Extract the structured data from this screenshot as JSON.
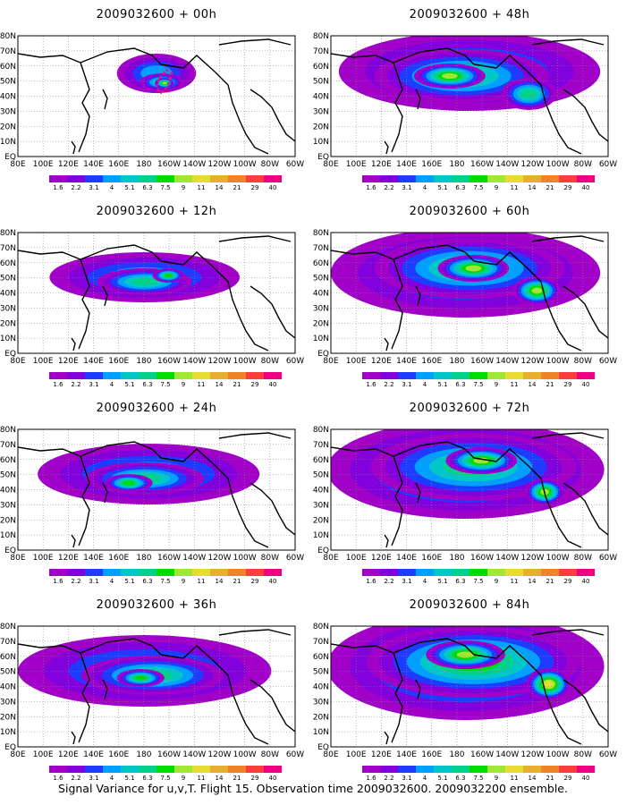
{
  "panels": [
    {
      "title": "2009032600 + 00h",
      "forecast_hour": 0,
      "blobs": [
        [
          175,
          82,
          50,
          22,
          0.25
        ],
        [
          182,
          92,
          28,
          10,
          0.45
        ],
        [
          185,
          93,
          12,
          6,
          0.55
        ]
      ],
      "contour": true
    },
    {
      "title": "2009032600 + 12h",
      "forecast_hour": 12,
      "blobs": [
        [
          160,
          90,
          120,
          28,
          0.22
        ],
        [
          160,
          95,
          60,
          15,
          0.38
        ],
        [
          190,
          88,
          20,
          8,
          0.5
        ]
      ],
      "contour": false
    },
    {
      "title": "2009032600 + 24h",
      "forecast_hour": 24,
      "blobs": [
        [
          165,
          90,
          140,
          34,
          0.22
        ],
        [
          160,
          95,
          75,
          18,
          0.38
        ],
        [
          140,
          100,
          30,
          10,
          0.48
        ]
      ],
      "contour": false
    },
    {
      "title": "2009032600 + 36h",
      "forecast_hour": 36,
      "blobs": [
        [
          160,
          90,
          160,
          40,
          0.22
        ],
        [
          170,
          95,
          90,
          22,
          0.38
        ],
        [
          155,
          98,
          30,
          10,
          0.52
        ]
      ],
      "contour": false
    },
    {
      "title": "2009032600 + 48h",
      "forecast_hour": 48,
      "blobs": [
        [
          175,
          80,
          165,
          44,
          0.26
        ],
        [
          165,
          85,
          110,
          30,
          0.38
        ],
        [
          150,
          85,
          45,
          14,
          0.55
        ],
        [
          250,
          105,
          35,
          18,
          0.45
        ]
      ],
      "contour": false
    },
    {
      "title": "2009032600 + 60h",
      "forecast_hour": 60,
      "blobs": [
        [
          170,
          85,
          170,
          50,
          0.28
        ],
        [
          175,
          80,
          120,
          34,
          0.42
        ],
        [
          180,
          80,
          45,
          15,
          0.6
        ],
        [
          260,
          105,
          30,
          16,
          0.55
        ]
      ],
      "contour": false
    },
    {
      "title": "2009032600 + 72h",
      "forecast_hour": 72,
      "blobs": [
        [
          170,
          85,
          175,
          55,
          0.3
        ],
        [
          180,
          82,
          130,
          38,
          0.44
        ],
        [
          190,
          75,
          45,
          15,
          0.62
        ],
        [
          270,
          110,
          25,
          15,
          0.6
        ]
      ],
      "contour": false
    },
    {
      "title": "2009032600 + 84h",
      "forecast_hour": 84,
      "blobs": [
        [
          170,
          85,
          175,
          60,
          0.32
        ],
        [
          180,
          80,
          135,
          40,
          0.46
        ],
        [
          170,
          72,
          50,
          16,
          0.62
        ],
        [
          275,
          105,
          28,
          18,
          0.66
        ]
      ],
      "contour": false
    }
  ],
  "lat_labels": [
    "80N",
    "70N",
    "60N",
    "50N",
    "40N",
    "30N",
    "20N",
    "10N",
    "EQ"
  ],
  "lon_labels": [
    "80E",
    "100E",
    "120E",
    "140E",
    "160E",
    "180",
    "160W",
    "140W",
    "120W",
    "100W",
    "80W",
    "60W"
  ],
  "colorbar": {
    "colors": [
      "#a000c8",
      "#8200dc",
      "#1e3cff",
      "#00a0ff",
      "#00c8c8",
      "#00d28c",
      "#00dc00",
      "#a0e632",
      "#e6dc32",
      "#e6af2d",
      "#f08228",
      "#fa3c3c",
      "#f00082"
    ],
    "labels": [
      "1.6",
      "2.2",
      "3.1",
      "4",
      "5.1",
      "6.3",
      "7.5",
      "9",
      "11",
      "14",
      "21",
      "29",
      "40"
    ]
  },
  "footer_text": "Signal Variance for u,v,T. Flight 15. Observation time 2009032600. 2009032200 ensemble."
}
